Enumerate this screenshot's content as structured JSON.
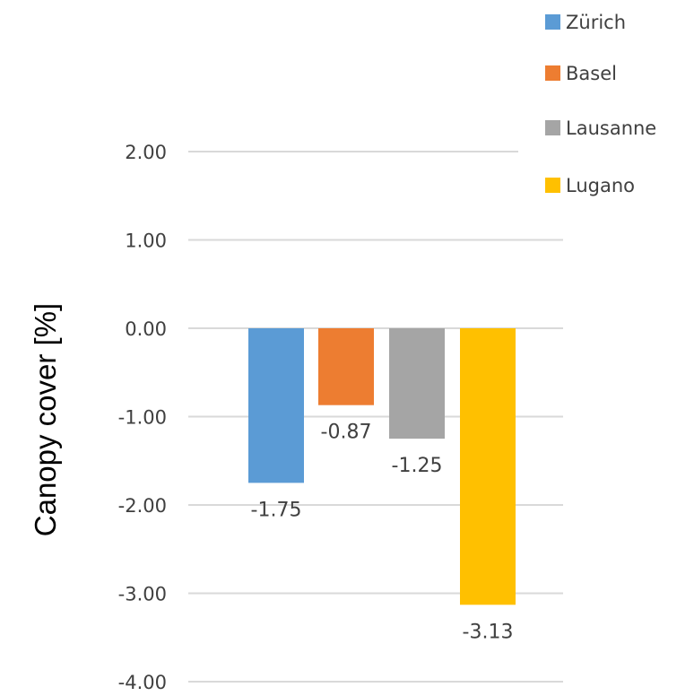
{
  "chart_data": {
    "type": "bar",
    "title": "",
    "xlabel": "",
    "ylabel": "Canopy cover [%]",
    "ylim": [
      -4.0,
      2.0
    ],
    "yticks": [
      "-4.00",
      "-3.00",
      "-2.00",
      "-1.00",
      "0.00",
      "1.00",
      "2.00"
    ],
    "grid": true,
    "legend_position": "top-right",
    "series": [
      {
        "name": "Zürich",
        "value": -1.75,
        "label": "-1.75",
        "color": "#5b9bd5"
      },
      {
        "name": "Basel",
        "value": -0.87,
        "label": "-0.87",
        "color": "#ed7d31"
      },
      {
        "name": "Lausanne",
        "value": -1.25,
        "label": "-1.25",
        "color": "#a5a5a5"
      },
      {
        "name": "Lugano",
        "value": -3.13,
        "label": "-3.13",
        "color": "#ffc000"
      }
    ]
  }
}
